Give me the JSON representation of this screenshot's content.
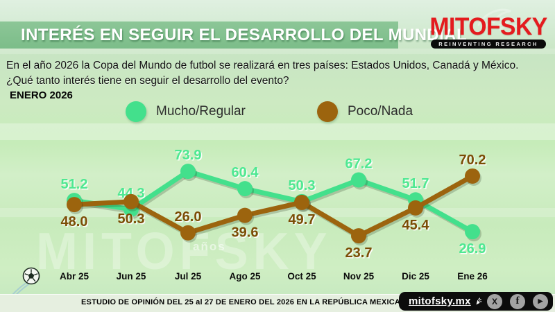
{
  "header": {
    "title": "INTERÉS EN SEGUIR EL DESARROLLO DEL MUNDIAL"
  },
  "logo": {
    "name": "MITOFSKY",
    "tagline": "REINVENTING RESEARCH",
    "brand_red": "#e41b1e"
  },
  "intro": {
    "question": "En el año 2026 la Copa del Mundo de futbol se realizará en tres países: Estados Unidos, Canadá y México. ¿Qué tanto interés tiene en seguir el desarrollo del evento?",
    "date_label": "ENERO 2026"
  },
  "chart_data": {
    "type": "line",
    "title": "INTERÉS EN SEGUIR EL DESARROLLO DEL MUNDIAL",
    "categories": [
      "Abr 25",
      "Jun 25",
      "Jul 25",
      "Ago 25",
      "Oct 25",
      "Nov 25",
      "Dic 25",
      "Ene 26"
    ],
    "series": [
      {
        "name": "Mucho/Regular",
        "color": "#43e08c",
        "label_color": "#4ee892",
        "values": [
          51.2,
          44.3,
          73.9,
          60.4,
          50.3,
          67.2,
          51.7,
          26.9
        ],
        "value_labels": [
          "51.2",
          "44.3",
          "73.9",
          "60.4",
          "50.3",
          "67.2",
          "51.7",
          "26.9"
        ],
        "label_pos": [
          "above",
          "above",
          "above",
          "above",
          "above",
          "above",
          "above",
          "below"
        ]
      },
      {
        "name": "Poco/Nada",
        "color": "#9c640e",
        "label_color": "#7b4d06",
        "values": [
          48.0,
          50.3,
          26.0,
          39.6,
          49.7,
          23.7,
          45.4,
          70.2
        ],
        "value_labels": [
          "48.0",
          "50.3",
          "26.0",
          "39.6",
          "49.7",
          "23.7",
          "45.4",
          "70.2"
        ],
        "label_pos": [
          "below",
          "below",
          "above",
          "below",
          "below",
          "below",
          "below",
          "above"
        ]
      }
    ],
    "ylim": [
      0,
      100
    ],
    "grid": false,
    "legend_position": "top-center"
  },
  "watermarks": {
    "brand": "MITOFSKY",
    "anniversary": "años"
  },
  "footer": {
    "study_note": "ESTUDIO DE OPINIÓN DEL 25 al 27 DE ENERO DEL 2026 EN LA REPÚBLICA MEXICANA",
    "site": "mitofsky.mx",
    "social": [
      {
        "name": "x",
        "glyph": "X"
      },
      {
        "name": "facebook",
        "glyph": "f"
      },
      {
        "name": "youtube",
        "glyph": "▶"
      }
    ]
  }
}
